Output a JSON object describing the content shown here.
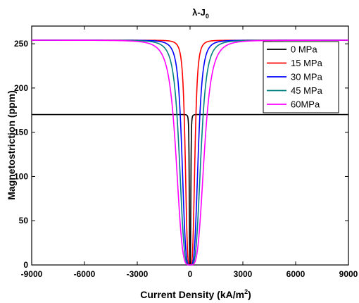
{
  "chart_data": {
    "type": "line",
    "title": "λ-J",
    "title_subscript": "0",
    "xlabel": "Current Density (kA/m",
    "xlabel_sup": "2",
    "xlabel_tail": ")",
    "ylabel": "Magnetostriction (ppm)",
    "xlim": [
      -9000,
      9000
    ],
    "ylim": [
      0,
      270
    ],
    "xticks": [
      "-9000",
      "-6000",
      "-3000",
      "0",
      "3000",
      "6000",
      "9000"
    ],
    "yticks": [
      "0",
      "50",
      "100",
      "150",
      "200",
      "250"
    ],
    "legend_position": "top-right",
    "grid": false,
    "series": [
      {
        "name": "0 MPa",
        "color": "#000000",
        "plateau": 170,
        "half_width": 150,
        "x": [
          -9000,
          -1000,
          -500,
          -300,
          -150,
          -50,
          0,
          50,
          150,
          300,
          500,
          1000,
          9000
        ],
        "y": [
          170,
          170,
          169.5,
          165,
          85,
          9.5,
          0,
          9.5,
          85,
          165,
          169.5,
          170,
          170
        ]
      },
      {
        "name": "15 MPa",
        "color": "#ff0000",
        "plateau": 254,
        "half_width": 900,
        "x": [
          -9000,
          -1800,
          -1500,
          -1200,
          -900,
          -600,
          -300,
          0,
          300,
          600,
          900,
          1200,
          1500,
          1800,
          9000
        ],
        "y": [
          254,
          254,
          251,
          232,
          127,
          22,
          3,
          0,
          3,
          22,
          127,
          232,
          251,
          254,
          254
        ]
      },
      {
        "name": "30 MPa",
        "color": "#0000ff",
        "plateau": 254,
        "half_width": 1500,
        "x": [
          -9000,
          -2400,
          -2100,
          -1800,
          -1500,
          -1200,
          -900,
          -500,
          0,
          500,
          900,
          1200,
          1500,
          1800,
          2100,
          2400,
          9000
        ],
        "y": [
          254,
          254,
          251,
          232,
          127,
          22,
          3,
          0,
          0,
          0,
          3,
          22,
          127,
          232,
          251,
          254,
          254
        ]
      },
      {
        "name": "45 MPa",
        "color": "#008080",
        "plateau": 254,
        "half_width": 2000,
        "x": [
          -9000,
          -2900,
          -2600,
          -2300,
          -2000,
          -1700,
          -1400,
          -800,
          0,
          800,
          1400,
          1700,
          2000,
          2300,
          2600,
          2900,
          9000
        ],
        "y": [
          254,
          254,
          251,
          232,
          127,
          22,
          3,
          0,
          0,
          0,
          3,
          22,
          127,
          232,
          251,
          254,
          254
        ]
      },
      {
        "name": "60MPa",
        "color": "#ff00ff",
        "plateau": 254,
        "half_width": 2600,
        "x": [
          -9000,
          -3500,
          -3200,
          -2900,
          -2600,
          -2300,
          -2000,
          -1200,
          0,
          1200,
          2000,
          2300,
          2600,
          2900,
          3200,
          3500,
          9000
        ],
        "y": [
          254,
          254,
          251,
          232,
          127,
          22,
          3,
          0,
          0,
          0,
          3,
          22,
          127,
          232,
          251,
          254,
          254
        ]
      }
    ]
  }
}
